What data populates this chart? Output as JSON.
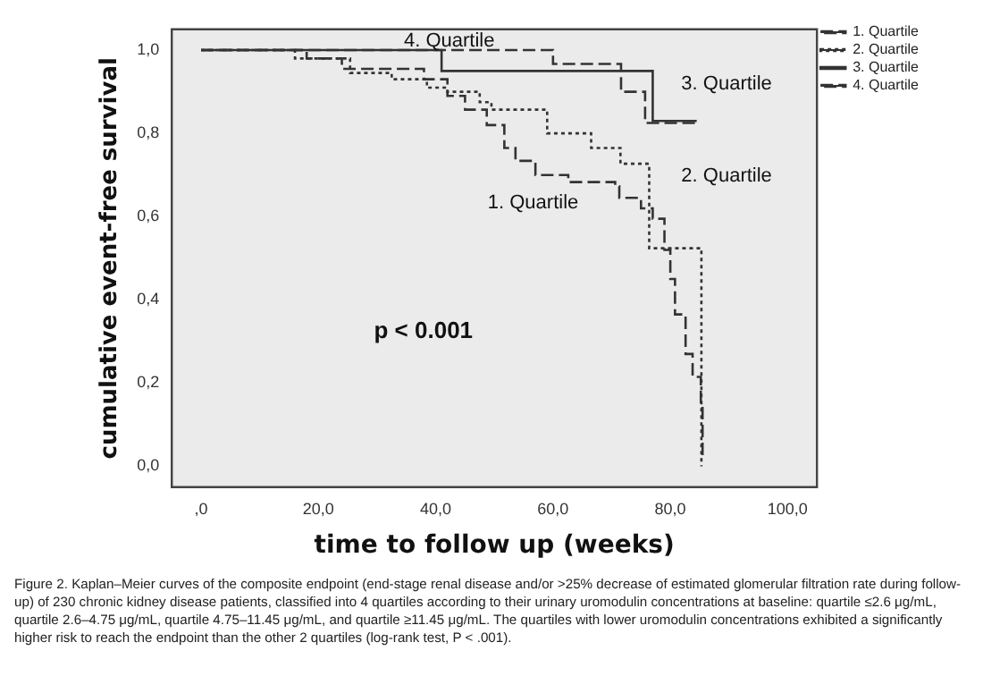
{
  "chart_data": {
    "type": "step",
    "xlabel": "time to follow up (weeks)",
    "ylabel": "cumulative event-free survival",
    "xlim": [
      -5,
      105
    ],
    "ylim": [
      -0.05,
      1.05
    ],
    "xticks": [
      {
        "value": 0,
        "label": ",0"
      },
      {
        "value": 20,
        "label": "20,0"
      },
      {
        "value": 40,
        "label": "40,0"
      },
      {
        "value": 60,
        "label": "60,0"
      },
      {
        "value": 80,
        "label": "80,0"
      },
      {
        "value": 100,
        "label": "100,0"
      }
    ],
    "yticks": [
      {
        "value": 0,
        "label": "0,0"
      },
      {
        "value": 0.2,
        "label": "0,2"
      },
      {
        "value": 0.4,
        "label": "0,4"
      },
      {
        "value": 0.6,
        "label": "0,6"
      },
      {
        "value": 0.8,
        "label": "0,8"
      },
      {
        "value": 1,
        "label": "1,0"
      }
    ],
    "grid": false,
    "legend": "right",
    "marker": "none",
    "series": [
      {
        "name": "1. Quartile",
        "color": "#333333",
        "line_style": "dashed",
        "x": [
          0,
          18,
          24,
          38,
          42,
          45,
          48.7,
          51.7,
          53.6,
          57,
          62.6,
          70.6,
          71.3,
          75,
          77,
          79,
          80,
          80.8,
          82.6,
          83.8,
          85.2,
          85.5
        ],
        "values": [
          1,
          0.98,
          0.955,
          0.93,
          0.89,
          0.857,
          0.82,
          0.765,
          0.734,
          0.7,
          0.683,
          0.673,
          0.645,
          0.62,
          0.595,
          0.52,
          0.45,
          0.365,
          0.27,
          0.215,
          0.14,
          0.02
        ]
      },
      {
        "name": "2. Quartile",
        "color": "#333333",
        "line_style": "dotted",
        "x": [
          0,
          16,
          25.4,
          32.5,
          38.5,
          42,
          47.5,
          49.5,
          59,
          66.5,
          71.5,
          76.4,
          85.3
        ],
        "values": [
          1,
          0.98,
          0.945,
          0.93,
          0.91,
          0.9,
          0.875,
          0.857,
          0.8,
          0.765,
          0.727,
          0.524,
          0.0
        ]
      },
      {
        "name": "3. Quartile",
        "color": "#333333",
        "line_style": "solid",
        "x": [
          0,
          41,
          77,
          84.5
        ],
        "values": [
          1,
          0.95,
          0.83,
          0.83
        ]
      },
      {
        "name": "4. Quartile",
        "color": "#333333",
        "line_style": "dashed",
        "x": [
          0,
          60,
          71.6,
          75.7,
          84.5
        ],
        "values": [
          1,
          0.967,
          0.9,
          0.825,
          0.825
        ]
      }
    ],
    "annotations": [
      "p < 0.001",
      "Figure 2.  Kaplan–Meier curves of the composite endpoint (end-stage renal disease and/or >25% decrease of estimated glomerular filtration rate during follow-up) of 230 chronic kidney disease patients, classified into 4 quartiles according to their urinary uromodulin concentrations at baseline: quartile ≤2.6 μg/mL, quartile 2.6–4.75 μg/mL, quartile 4.75–11.45 μg/mL, and quartile ≥11.45 μg/mL. The quartiles with lower uromodulin concentrations exhibited a significantly higher risk to reach the endpoint than the other 2 quartiles (log-rank test, P < .001)."
    ]
  }
}
